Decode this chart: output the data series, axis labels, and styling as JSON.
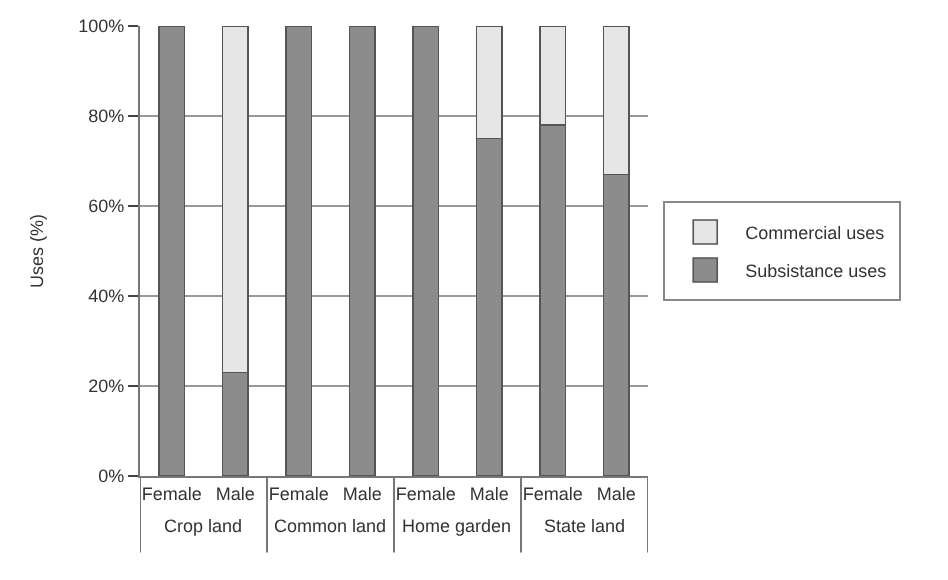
{
  "chart_data": {
    "type": "bar",
    "stacked": true,
    "ylabel": "Uses (%)",
    "categories": [
      "Female",
      "Male",
      "Female",
      "Male",
      "Female",
      "Male",
      "Female",
      "Male"
    ],
    "series": [
      {
        "name": "Subsistance uses",
        "color": "#8c8c8c",
        "values": [
          100,
          23,
          100,
          100,
          100,
          75,
          78,
          67
        ]
      },
      {
        "name": "Commercial uses",
        "color": "#e6e6e6",
        "values": [
          null,
          77,
          null,
          null,
          null,
          25,
          22,
          33
        ]
      }
    ],
    "annotations": [
      "Crop land",
      "Common land",
      "Home garden",
      "State land"
    ],
    "ylim": [
      0,
      100
    ],
    "yticks": [
      {
        "value": 0,
        "label": "0%"
      },
      {
        "value": 20,
        "label": "20%"
      },
      {
        "value": 40,
        "label": "40%"
      },
      {
        "value": 60,
        "label": "60%"
      },
      {
        "value": 80,
        "label": "80%"
      },
      {
        "value": 100,
        "label": "100%"
      }
    ],
    "grid": "y",
    "legend": "right"
  }
}
